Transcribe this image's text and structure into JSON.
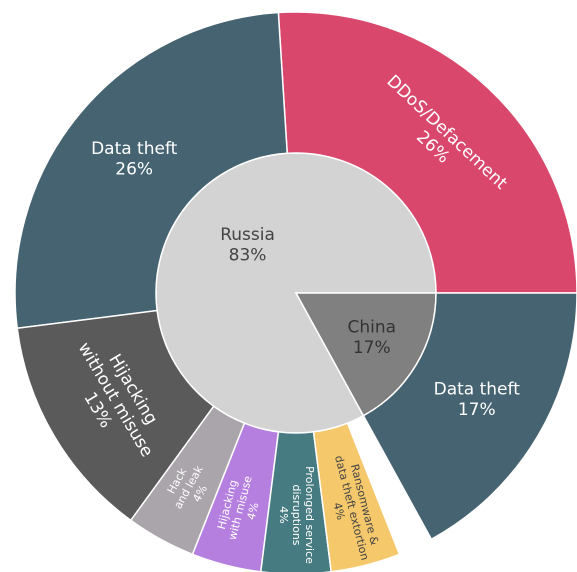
{
  "chart_data": {
    "type": "sunburst",
    "series": [
      {
        "name": "Russia",
        "value": 83,
        "value_label": "83%",
        "color": "#d3d3d3",
        "children": [
          {
            "name": [
              "DDoS/Defacement"
            ],
            "value": 26,
            "value_label": "26%",
            "color": "#d9476c"
          },
          {
            "name": [
              "Data theft"
            ],
            "value": 26,
            "value_label": "26%",
            "color": "#456370"
          },
          {
            "name": [
              "Hijacking",
              "without misuse"
            ],
            "value": 13,
            "value_label": "13%",
            "color": "#5a5a5a"
          },
          {
            "name": [
              "Hack",
              "and leak"
            ],
            "value": 4,
            "value_label": "4%",
            "color": "#aaa4ab"
          },
          {
            "name": [
              "Hijacking",
              "with misuse"
            ],
            "value": 4,
            "value_label": "4%",
            "color": "#b57fe0"
          },
          {
            "name": [
              "Prolonged service",
              "disruptions"
            ],
            "value": 4,
            "value_label": "4%",
            "color": "#467b81"
          },
          {
            "name": [
              "Ransomware &",
              "data theft extortion"
            ],
            "value": 4,
            "value_label": "4%",
            "color": "#f5c86b"
          }
        ]
      },
      {
        "name": "China",
        "value": 17,
        "value_label": "17%",
        "color": "#808080",
        "children": [
          {
            "name": [
              "Data theft"
            ],
            "value": 17,
            "value_label": "17%",
            "color": "#456370"
          }
        ]
      }
    ]
  }
}
